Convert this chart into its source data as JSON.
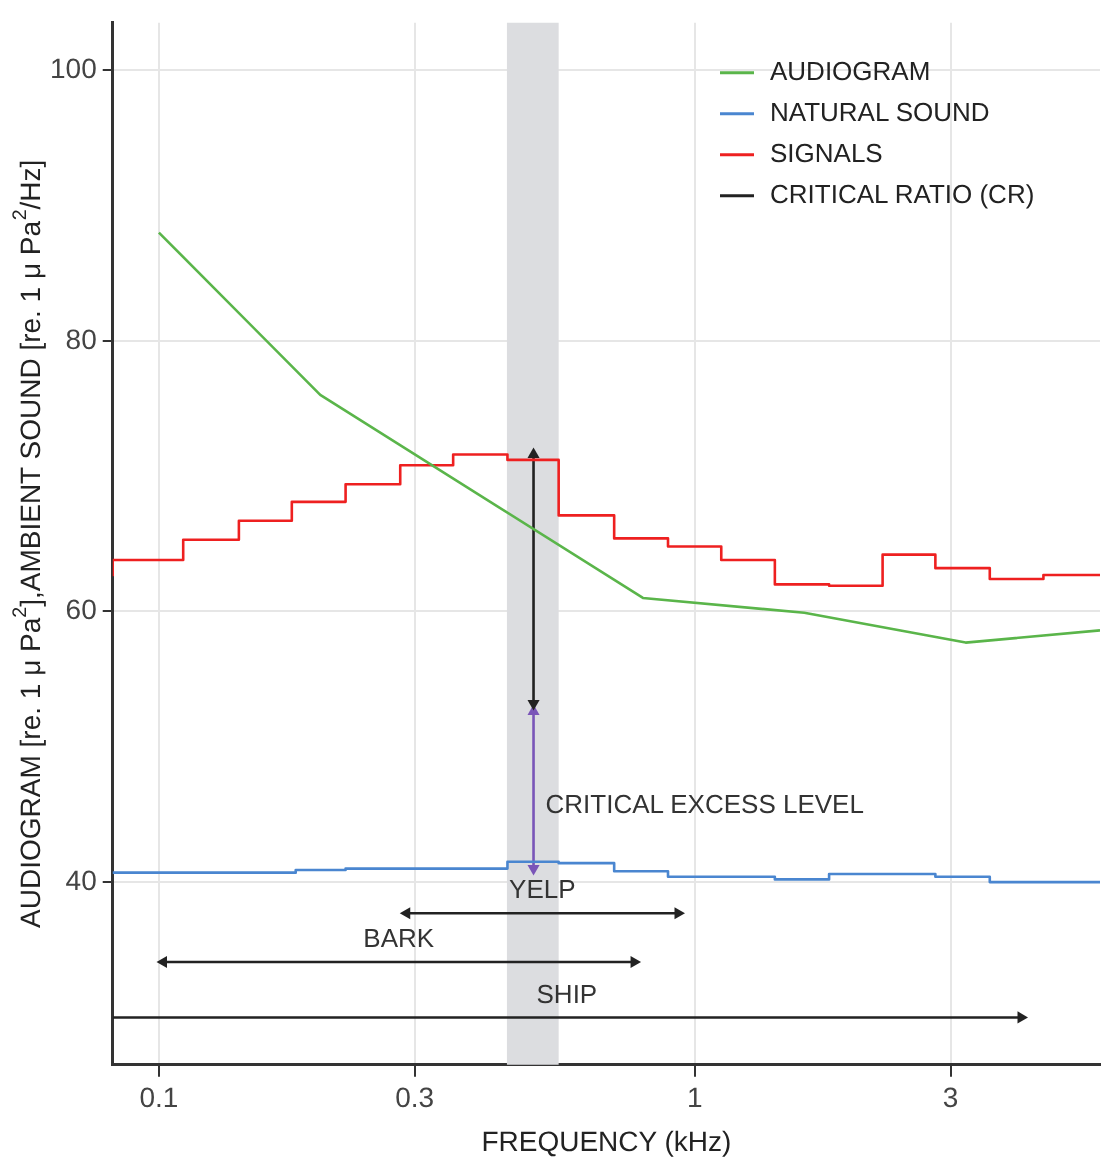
{
  "chart_data": {
    "type": "line",
    "xlabel": "FREQUENCY (kHz)",
    "ylabel": "AUDIOGRAM [re. 1 μ Pa$^{2}$],AMBIENT SOUND [re. 1 μ Pa$^{2}$/Hz]",
    "log": "x",
    "xlim": [
      0.082,
      5.7
    ],
    "ylim": [
      26.5,
      103.5
    ],
    "xticks": [
      0.1,
      0.3,
      1,
      3
    ],
    "yticks": [
      40,
      60,
      80,
      100
    ],
    "grid": true,
    "legend": "top right",
    "bands": [
      {
        "axis": "x",
        "from": 0.446,
        "to": 0.557,
        "color": "#dcdde0"
      }
    ],
    "series": [
      {
        "name": "AUDIOGRAM",
        "color": "#5ab54a",
        "x": [
          0.1,
          0.2,
          0.8,
          1.6,
          3.2,
          5.7
        ],
        "values": [
          88,
          76,
          61,
          59.9,
          57.7,
          58.6
        ]
      },
      {
        "name": "NATURAL SOUND",
        "type": "step",
        "color": "#4a86d0",
        "x": [
          0.082,
          0.18,
          0.223,
          0.282,
          0.447,
          0.557,
          0.707,
          0.891,
          1.41,
          1.78,
          2.81,
          3.55,
          4.47,
          5.7
        ],
        "values": [
          40.6,
          40.7,
          40.9,
          41.0,
          41.0,
          41.5,
          41.4,
          40.8,
          40.4,
          40.2,
          40.6,
          40.4,
          40.0,
          40.0
        ]
      },
      {
        "name": "SIGNALS",
        "type": "step",
        "color": "#ee2020",
        "x": [
          0.082,
          0.111,
          0.141,
          0.177,
          0.223,
          0.282,
          0.354,
          0.447,
          0.557,
          0.707,
          0.891,
          1.12,
          1.41,
          1.78,
          2.24,
          2.81,
          3.55,
          4.47,
          5.62,
          5.7
        ],
        "values": [
          62.6,
          63.8,
          65.3,
          66.7,
          68.1,
          69.4,
          70.8,
          71.6,
          71.2,
          67.1,
          65.4,
          64.8,
          63.8,
          62.0,
          61.9,
          64.2,
          63.2,
          62.4,
          62.7,
          62.7
        ]
      },
      {
        "name": "CRITICAL RATIO (CR)",
        "color": "#222222",
        "marker": "triangle",
        "x": [
          0.5,
          0.5
        ],
        "values": [
          71.6,
          53.2
        ]
      },
      {
        "color": "#7a55b8",
        "marker": "triangle",
        "x": [
          0.5,
          0.5
        ],
        "values": [
          52.6,
          41.0
        ]
      },
      {
        "color": "#222222",
        "marker": "triangle",
        "x": [
          0.29,
          0.93
        ],
        "values": [
          37.7,
          37.7
        ]
      },
      {
        "color": "#222222",
        "marker": "triangle",
        "x": [
          0.102,
          0.77
        ],
        "values": [
          34.1,
          34.1
        ]
      },
      {
        "color": "#222222",
        "marker": "triangle",
        "x": [
          0.082,
          4.06
        ],
        "values": [
          30.0,
          30.0
        ]
      }
    ],
    "annotations": [
      "CRITICAL EXCESS LEVEL",
      "YELP",
      "BARK",
      "SHIP"
    ]
  }
}
